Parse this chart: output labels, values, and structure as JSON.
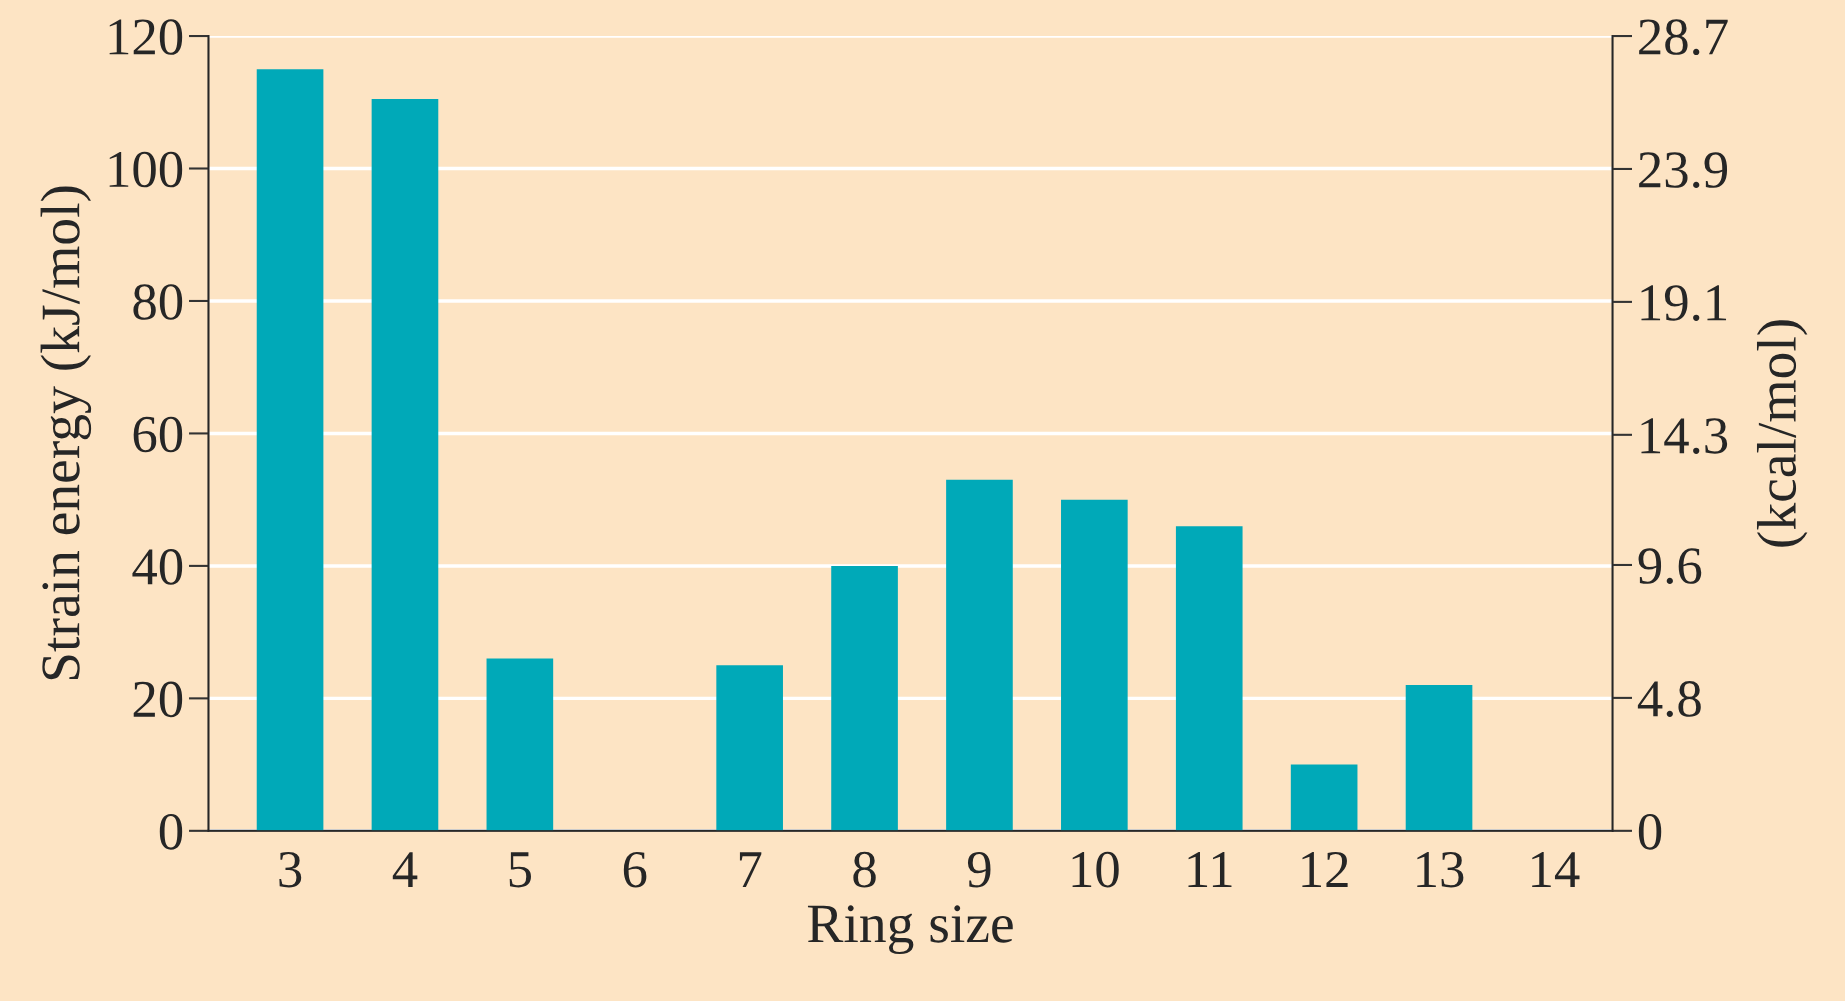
{
  "chart_data": {
    "type": "bar",
    "xlabel": "Ring size",
    "ylabel": "Strain energy (kJ/mol)",
    "y2label": "(kcal/mol)",
    "categories": [
      "3",
      "4",
      "5",
      "6",
      "7",
      "8",
      "9",
      "10",
      "11",
      "12",
      "13",
      "14"
    ],
    "values": [
      115,
      110.5,
      26,
      0,
      25,
      40,
      53,
      50,
      46,
      10,
      22,
      0
    ],
    "color": "#00a9b8",
    "ylim": [
      0,
      120
    ],
    "yticks": [
      0,
      20,
      40,
      60,
      80,
      100,
      120
    ],
    "y2lim": [
      0,
      28.7
    ],
    "y2ticks": [
      0,
      4.8,
      9.6,
      14.3,
      19.1,
      23.9,
      28.7
    ],
    "grid": "y"
  }
}
